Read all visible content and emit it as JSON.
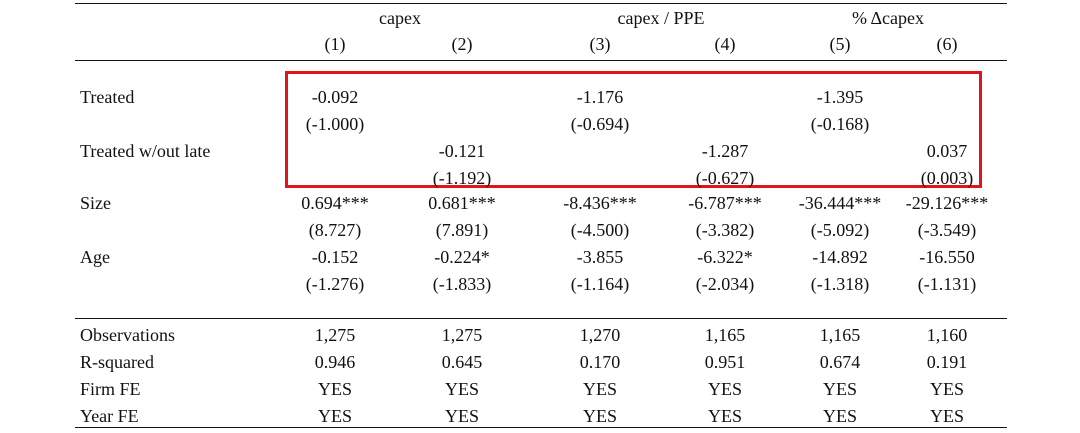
{
  "table": {
    "group_headers": [
      "capex",
      "capex / PPE",
      "% Δcapex"
    ],
    "column_numbers": [
      "(1)",
      "(2)",
      "(3)",
      "(4)",
      "(5)",
      "(6)"
    ],
    "rows": [
      {
        "label": "Treated",
        "coef": [
          "-0.092",
          "",
          "-1.176",
          "",
          "-1.395",
          ""
        ],
        "tstat": [
          "(-1.000)",
          "",
          "(-0.694)",
          "",
          "(-0.168)",
          ""
        ]
      },
      {
        "label": "Treated w/out late",
        "coef": [
          "",
          "-0.121",
          "",
          "-1.287",
          "",
          "0.037"
        ],
        "tstat": [
          "",
          "(-1.192)",
          "",
          "(-0.627)",
          "",
          "(0.003)"
        ]
      },
      {
        "label": "Size",
        "coef": [
          "0.694***",
          "0.681***",
          "-8.436***",
          "-6.787***",
          "-36.444***",
          "-29.126***"
        ],
        "tstat": [
          "(8.727)",
          "(7.891)",
          "(-4.500)",
          "(-3.382)",
          "(-5.092)",
          "(-3.549)"
        ]
      },
      {
        "label": "Age",
        "coef": [
          "-0.152",
          "-0.224*",
          "-3.855",
          "-6.322*",
          "-14.892",
          "-16.550"
        ],
        "tstat": [
          "(-1.276)",
          "(-1.833)",
          "(-1.164)",
          "(-2.034)",
          "(-1.318)",
          "(-1.131)"
        ]
      }
    ],
    "stats": [
      {
        "label": "Observations",
        "values": [
          "1,275",
          "1,275",
          "1,270",
          "1,165",
          "1,165",
          "1,160"
        ]
      },
      {
        "label": "R-squared",
        "values": [
          "0.946",
          "0.645",
          "0.170",
          "0.951",
          "0.674",
          "0.191"
        ]
      },
      {
        "label": "Firm FE",
        "values": [
          "YES",
          "YES",
          "YES",
          "YES",
          "YES",
          "YES"
        ]
      },
      {
        "label": "Year FE",
        "values": [
          "YES",
          "YES",
          "YES",
          "YES",
          "YES",
          "YES"
        ]
      }
    ]
  },
  "highlight": {
    "color": "#e0151b"
  }
}
